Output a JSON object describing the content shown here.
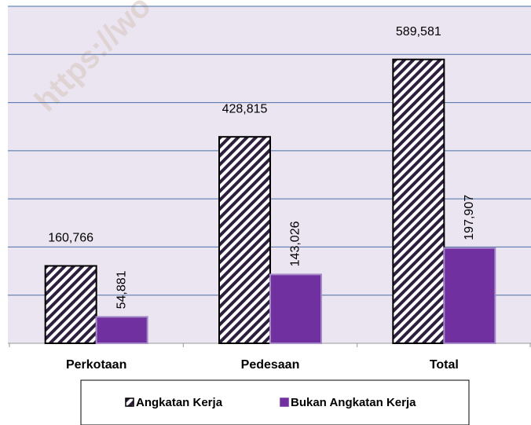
{
  "chart_data": {
    "type": "bar",
    "watermark": "https://wo",
    "categories": [
      "Perkotaan",
      "Pedesaan",
      "Total"
    ],
    "series": [
      {
        "name": "Angkatan Kerja",
        "color": "#2e1f3f",
        "values": [
          160766,
          428815,
          589581
        ],
        "value_labels": [
          "160,766",
          "428,815",
          "589,581"
        ]
      },
      {
        "name": "Bukan Angkatan Kerja",
        "color": "#7030a0",
        "values": [
          54881,
          143026,
          197907
        ],
        "value_labels": [
          "54,881",
          "143,026",
          "197,907"
        ]
      }
    ],
    "ylim": [
      0,
      700000
    ],
    "yticks": [
      0,
      100000,
      200000,
      300000,
      400000,
      500000,
      600000,
      700000
    ],
    "grid": true,
    "legend": "bottom"
  }
}
